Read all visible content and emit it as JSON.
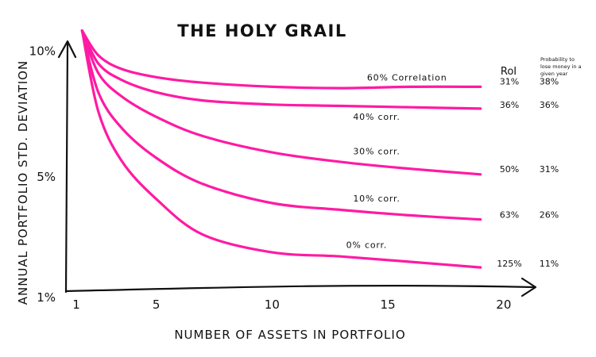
{
  "chart_data": {
    "type": "line",
    "title": "THE HOLY GRAIL",
    "xlabel": "NUMBER OF ASSETS IN PORTFOLIO",
    "ylabel": "ANNUAL PORTFOLIO STD. DEVIATION",
    "xlim": [
      1,
      21
    ],
    "ylim": [
      1,
      11
    ],
    "x_ticks": [
      {
        "value": 1,
        "label": "1"
      },
      {
        "value": 5,
        "label": "5"
      },
      {
        "value": 10,
        "label": "10"
      },
      {
        "value": 15,
        "label": "15"
      },
      {
        "value": 20,
        "label": "20"
      }
    ],
    "y_ticks": [
      {
        "value": 1,
        "label": "1%"
      },
      {
        "value": 5.4,
        "label": "5%"
      },
      {
        "value": 10,
        "label": "10%"
      }
    ],
    "grid": false,
    "line_color": "#ff1aa3",
    "table_headers": {
      "roi": "RoI",
      "probability": [
        "Probability to",
        "lose money in a",
        "given year"
      ]
    },
    "series": [
      {
        "label": "60% Correlation",
        "roi": "31%",
        "probability": "38%",
        "x": [
          1.8,
          2.5,
          3.5,
          5,
          7,
          10,
          13,
          16,
          19
        ],
        "y": [
          10.75,
          9.85,
          9.35,
          9.05,
          8.85,
          8.7,
          8.65,
          8.7,
          8.7
        ]
      },
      {
        "label": "40% corr.",
        "roi": "36%",
        "probability": "36%",
        "x": [
          1.8,
          2.5,
          3.5,
          5,
          7,
          10,
          13,
          16,
          19
        ],
        "y": [
          10.75,
          9.55,
          8.95,
          8.5,
          8.2,
          8.05,
          8.0,
          7.95,
          7.9
        ]
      },
      {
        "label": "30% corr.",
        "roi": "50%",
        "probability": "31%",
        "x": [
          1.8,
          2.5,
          3.5,
          5,
          7,
          10,
          13,
          16,
          19
        ],
        "y": [
          10.75,
          9.2,
          8.35,
          7.6,
          6.9,
          6.3,
          5.95,
          5.7,
          5.5
        ]
      },
      {
        "label": "10% corr.",
        "roi": "63%",
        "probability": "26%",
        "x": [
          1.8,
          2.5,
          3.5,
          5,
          7,
          10,
          13,
          16,
          19
        ],
        "y": [
          10.75,
          8.5,
          7.2,
          6.1,
          5.15,
          4.45,
          4.2,
          4.0,
          3.85
        ]
      },
      {
        "label": "0% corr.",
        "roi": "125%",
        "probability": "11%",
        "x": [
          1.8,
          2.5,
          3.5,
          5,
          7,
          10,
          13,
          16,
          19
        ],
        "y": [
          10.75,
          7.8,
          6.0,
          4.6,
          3.3,
          2.65,
          2.5,
          2.3,
          2.1
        ]
      }
    ]
  }
}
